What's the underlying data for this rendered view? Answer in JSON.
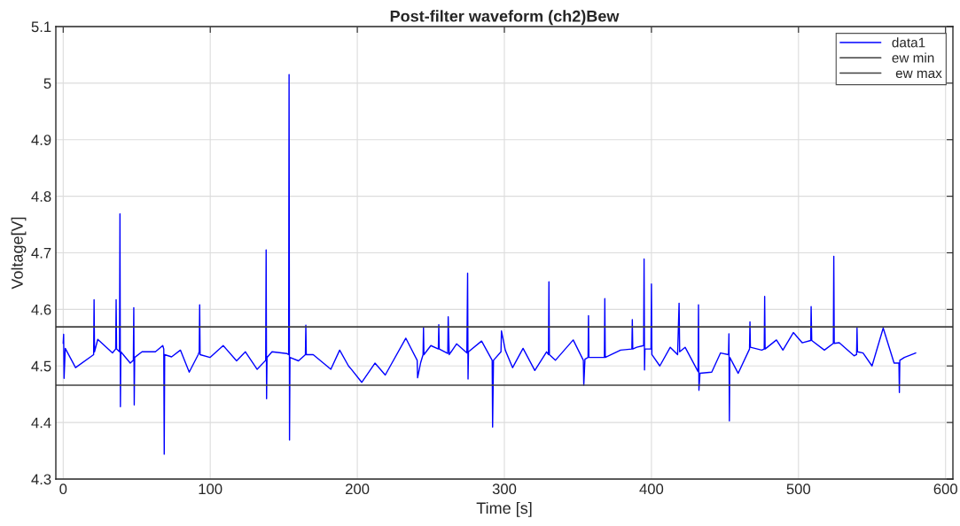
{
  "chart_data": {
    "type": "line",
    "title": "Post-filter waveform (ch2)Bew",
    "xlabel": "Time [s]",
    "ylabel": "Voltage[V]",
    "xlim": [
      -5,
      605
    ],
    "xticks": [
      0,
      100,
      200,
      300,
      400,
      500,
      600
    ],
    "ylim": [
      4.3,
      5.1
    ],
    "yticks": [
      4.3,
      4.4,
      4.5,
      4.6,
      4.7,
      4.8,
      4.9,
      5,
      5.1
    ],
    "grid": true,
    "legend": "top right",
    "ref_lines": [
      {
        "axis": "y",
        "value": 4.466,
        "label": "ew min",
        "color": "#404040"
      },
      {
        "axis": "y",
        "value": 4.569,
        "label": " ew max",
        "color": "#404040"
      }
    ],
    "series": [
      {
        "name": "data1",
        "color": "#0000ff",
        "x": [
          0,
          0.3,
          0.6,
          1.4,
          8.4,
          20.7,
          21,
          21.3,
          23.5,
          33.5,
          35.7,
          36,
          36.3,
          38.3,
          38.6,
          38.9,
          39.2,
          45.6,
          47.7,
          48,
          48.3,
          48.6,
          53.6,
          62.7,
          67.7,
          68.4,
          68.7,
          69,
          73.7,
          79.7,
          85.7,
          91.8,
          92.5,
          92.8,
          93.1,
          99.8,
          108.8,
          117.9,
          123.9,
          131.9,
          137.7,
          138,
          138.3,
          138.6,
          142,
          152,
          153.3,
          153.6,
          153.9,
          154.2,
          160,
          164.7,
          165,
          165.3,
          170,
          182,
          188,
          194,
          196,
          203,
          212,
          219,
          233,
          240.7,
          241,
          243,
          244.7,
          245,
          245.3,
          250,
          255.1,
          255.4,
          255.7,
          261.5,
          261.8,
          262.5,
          267.5,
          274.5,
          275,
          275.3,
          275.6,
          284.5,
          291.7,
          292,
          292.6,
          297.7,
          298,
          300.6,
          305.6,
          312.7,
          320.7,
          328.7,
          330,
          330.3,
          330.6,
          334.7,
          346.8,
          353.7,
          354,
          354.8,
          356.9,
          357.2,
          357.5,
          366.9,
          368,
          368.3,
          368.6,
          379,
          386.7,
          387,
          387.3,
          390,
          394.7,
          395,
          395.3,
          395.6,
          399.7,
          400,
          400.3,
          405.7,
          412.8,
          417.8,
          418.8,
          419.2,
          422.9,
          431.7,
          432,
          432.3,
          433,
          441,
          447,
          452.4,
          452.7,
          453,
          453.3,
          459,
          466.7,
          467,
          467.3,
          475,
          476.7,
          477,
          477.3,
          485,
          489.4,
          496.5,
          502.5,
          508.3,
          508.6,
          509,
          517.6,
          523.7,
          524,
          524.3,
          527.7,
          537.8,
          539.5,
          539.8,
          540.1,
          543.9,
          550,
          557.6,
          565,
          568.3,
          568.6,
          568.9,
          572,
          579.7
        ],
        "values": [
          4.54,
          4.556,
          4.478,
          4.531,
          4.497,
          4.52,
          4.617,
          4.525,
          4.547,
          4.523,
          4.53,
          4.617,
          4.53,
          4.525,
          4.769,
          4.428,
          4.525,
          4.505,
          4.51,
          4.603,
          4.431,
          4.515,
          4.525,
          4.525,
          4.536,
          4.53,
          4.344,
          4.52,
          4.516,
          4.528,
          4.489,
          4.52,
          4.525,
          4.608,
          4.52,
          4.515,
          4.536,
          4.509,
          4.525,
          4.494,
          4.51,
          4.705,
          4.442,
          4.515,
          4.525,
          4.522,
          4.52,
          5.015,
          4.369,
          4.515,
          4.509,
          4.52,
          4.572,
          4.52,
          4.52,
          4.494,
          4.528,
          4.5,
          4.494,
          4.471,
          4.505,
          4.484,
          4.549,
          4.51,
          4.479,
          4.505,
          4.52,
          4.568,
          4.52,
          4.536,
          4.53,
          4.573,
          4.53,
          4.522,
          4.587,
          4.52,
          4.539,
          4.523,
          4.664,
          4.477,
          4.525,
          4.544,
          4.51,
          4.392,
          4.51,
          4.525,
          4.562,
          4.528,
          4.497,
          4.531,
          4.492,
          4.525,
          4.52,
          4.649,
          4.52,
          4.51,
          4.546,
          4.51,
          4.466,
          4.512,
          4.515,
          4.589,
          4.515,
          4.515,
          4.515,
          4.619,
          4.515,
          4.528,
          4.53,
          4.582,
          4.53,
          4.533,
          4.536,
          4.689,
          4.493,
          4.53,
          4.53,
          4.645,
          4.52,
          4.5,
          4.533,
          4.52,
          4.611,
          4.525,
          4.533,
          4.49,
          4.608,
          4.457,
          4.487,
          4.489,
          4.523,
          4.52,
          4.557,
          4.403,
          4.515,
          4.487,
          4.53,
          4.578,
          4.533,
          4.528,
          4.53,
          4.623,
          4.53,
          4.546,
          4.528,
          4.559,
          4.541,
          4.545,
          4.605,
          4.545,
          4.528,
          4.54,
          4.694,
          4.54,
          4.541,
          4.518,
          4.52,
          4.567,
          4.525,
          4.523,
          4.5,
          4.567,
          4.505,
          4.505,
          4.453,
          4.51,
          4.515,
          4.523
        ]
      }
    ]
  }
}
